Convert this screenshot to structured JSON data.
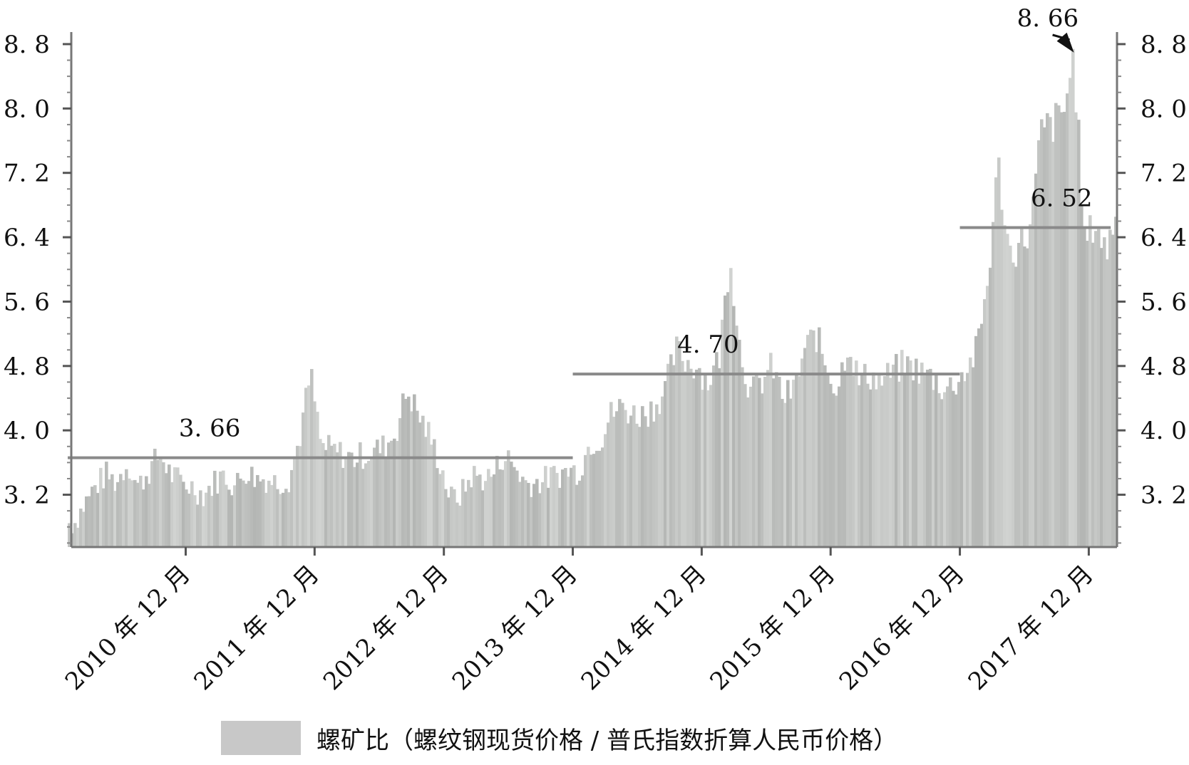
{
  "chart_data": {
    "type": "area",
    "y_axis": {
      "ticks": [
        3.2,
        4.0,
        4.8,
        5.6,
        6.4,
        7.2,
        8.0,
        8.8
      ],
      "tick_labels": [
        "3. 2",
        "4. 0",
        "4. 8",
        "5. 6",
        "6. 4",
        "7. 2",
        "8. 0",
        "8. 8"
      ],
      "range": [
        2.55,
        8.95
      ]
    },
    "y_axis_right": {
      "ticks": [
        3.2,
        4.0,
        4.8,
        5.6,
        6.4,
        7.2,
        8.0,
        8.8
      ],
      "tick_labels": [
        "3. 2",
        "4. 0",
        "4. 8",
        "5. 6",
        "6. 4",
        "7. 2",
        "8. 0",
        "8. 8"
      ]
    },
    "x_axis": {
      "range": [
        "2010-01-01",
        "2018-03-01"
      ],
      "ticks": [
        "2010-12-01",
        "2011-12-01",
        "2012-12-01",
        "2013-12-01",
        "2014-12-01",
        "2015-12-01",
        "2016-12-01",
        "2017-12-01"
      ],
      "tick_labels": [
        "2010 年 12 月",
        "2011 年 12 月",
        "2012 年 12 月",
        "2013 年 12 月",
        "2014 年 12 月",
        "2015 年 12 月",
        "2016 年 12 月",
        "2017 年 12 月"
      ]
    },
    "series": [
      {
        "name": "螺矿比（螺纹钢现货价格 / 普氏指数折算人民币价格）",
        "color": "#c8c8c8",
        "x": [
          "2010-01",
          "2010-02",
          "2010-03",
          "2010-04",
          "2010-05",
          "2010-06",
          "2010-07",
          "2010-08",
          "2010-09",
          "2010-10",
          "2010-11",
          "2010-12",
          "2011-01",
          "2011-02",
          "2011-03",
          "2011-04",
          "2011-05",
          "2011-06",
          "2011-07",
          "2011-08",
          "2011-09",
          "2011-10",
          "2011-11",
          "2011-12",
          "2012-01",
          "2012-02",
          "2012-03",
          "2012-04",
          "2012-05",
          "2012-06",
          "2012-07",
          "2012-08",
          "2012-09",
          "2012-10",
          "2012-11",
          "2012-12",
          "2013-01",
          "2013-02",
          "2013-03",
          "2013-04",
          "2013-05",
          "2013-06",
          "2013-07",
          "2013-08",
          "2013-09",
          "2013-10",
          "2013-11",
          "2013-12",
          "2014-01",
          "2014-02",
          "2014-03",
          "2014-04",
          "2014-05",
          "2014-06",
          "2014-07",
          "2014-08",
          "2014-09",
          "2014-10",
          "2014-11",
          "2014-12",
          "2015-01",
          "2015-02",
          "2015-03",
          "2015-04",
          "2015-05",
          "2015-06",
          "2015-07",
          "2015-08",
          "2015-09",
          "2015-10",
          "2015-11",
          "2015-12",
          "2016-01",
          "2016-02",
          "2016-03",
          "2016-04",
          "2016-05",
          "2016-06",
          "2016-07",
          "2016-08",
          "2016-09",
          "2016-10",
          "2016-11",
          "2016-12",
          "2017-01",
          "2017-02",
          "2017-03",
          "2017-04",
          "2017-05",
          "2017-06",
          "2017-07",
          "2017-08",
          "2017-09",
          "2017-10",
          "2017-11",
          "2017-12",
          "2018-01",
          "2018-02"
        ],
        "y": [
          2.85,
          3.1,
          3.3,
          3.45,
          3.35,
          3.6,
          3.3,
          3.5,
          3.7,
          3.45,
          3.35,
          3.3,
          3.2,
          3.35,
          3.45,
          3.3,
          3.5,
          3.4,
          3.4,
          3.35,
          3.4,
          3.9,
          4.7,
          3.8,
          3.75,
          3.7,
          3.65,
          3.7,
          3.75,
          3.8,
          4.0,
          4.5,
          4.2,
          3.95,
          3.6,
          3.15,
          3.2,
          3.45,
          3.4,
          3.45,
          3.7,
          3.55,
          3.35,
          3.35,
          3.4,
          3.45,
          3.5,
          3.5,
          3.85,
          3.9,
          4.2,
          4.3,
          4.2,
          4.2,
          4.3,
          4.5,
          5.0,
          4.85,
          4.8,
          4.6,
          4.9,
          6.2,
          5.0,
          4.45,
          4.6,
          4.8,
          4.4,
          4.5,
          5.0,
          5.2,
          4.8,
          4.5,
          5.1,
          4.6,
          4.7,
          4.6,
          4.7,
          4.8,
          4.8,
          4.7,
          4.65,
          4.5,
          4.6,
          4.75,
          5.0,
          5.9,
          7.3,
          6.2,
          6.3,
          6.5,
          7.7,
          7.8,
          7.9,
          8.66,
          6.3,
          6.6,
          6.2,
          6.8
        ],
        "mean_lines": [
          {
            "from": "2010-01",
            "to": "2013-12",
            "value": 3.66,
            "label": "3. 66"
          },
          {
            "from": "2013-12",
            "to": "2016-12",
            "value": 4.7,
            "label": "4. 70"
          },
          {
            "from": "2016-12",
            "to": "2018-02",
            "value": 6.52,
            "label": "6. 52"
          }
        ],
        "peak": {
          "x": "2017-10",
          "value": 8.66,
          "label": "8. 66"
        }
      }
    ],
    "grid": false,
    "legend_position": "bottom"
  },
  "legend": {
    "label": "螺矿比（螺纹钢现货价格 / 普氏指数折算人民币价格）",
    "swatch_color": "#c8c8c8"
  }
}
